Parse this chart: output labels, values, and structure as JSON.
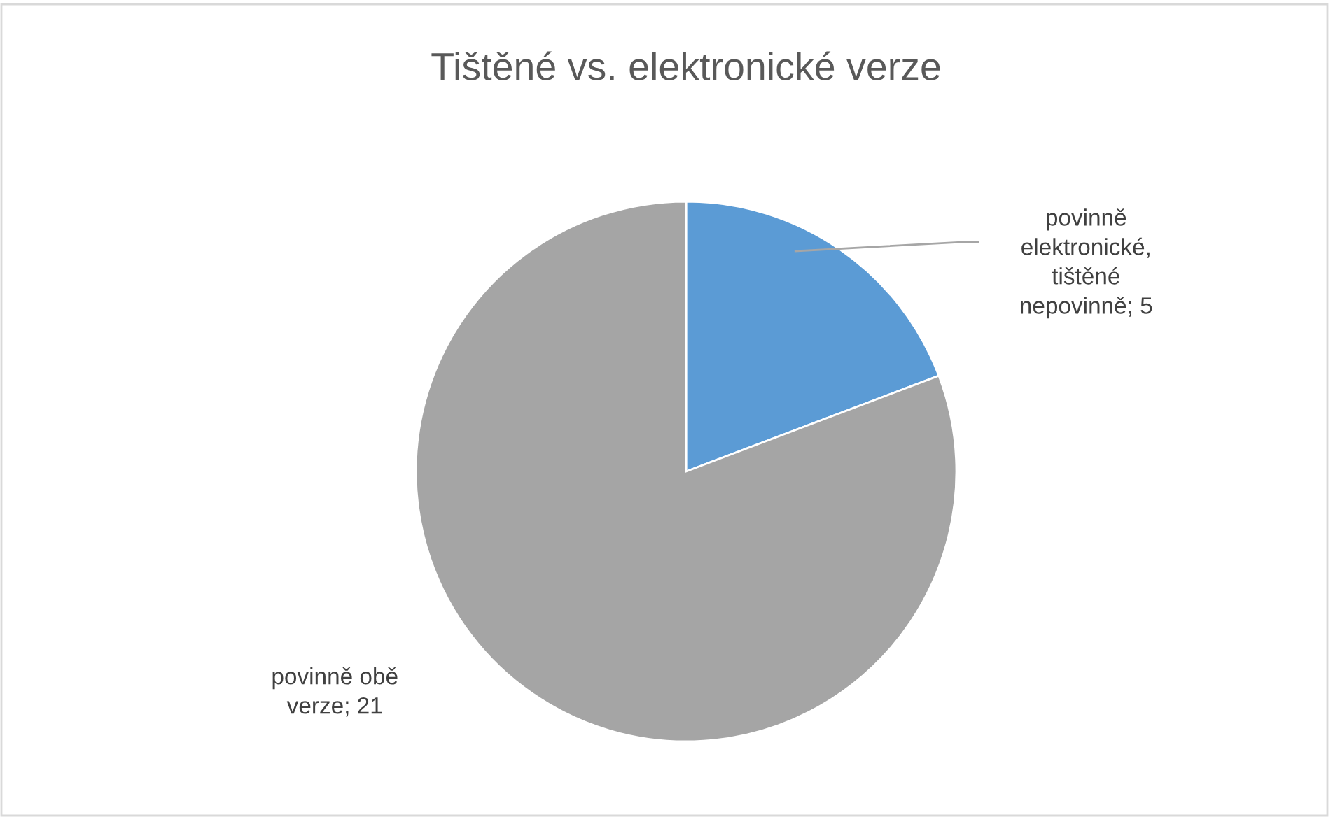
{
  "chart_data": {
    "type": "pie",
    "title": "Tištěné vs. elektronické verze",
    "categories": [
      null,
      null
    ],
    "value_labels": [
      "povinně elektronické, tištěné nepovinně; 5",
      "povinně obě verze; 21"
    ],
    "values": [
      5,
      21
    ],
    "colors": [
      "#5b9bd5",
      "#a5a5a5"
    ],
    "legend": false
  }
}
